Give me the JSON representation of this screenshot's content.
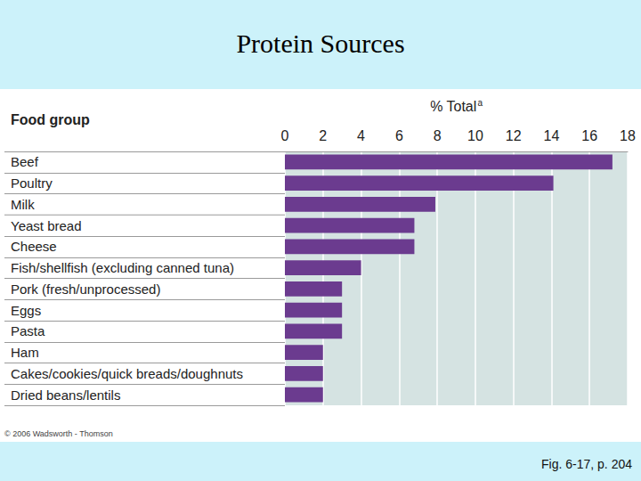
{
  "chart_data": {
    "type": "bar",
    "orientation": "horizontal",
    "title": "Protein Sources",
    "y_label": "Food group",
    "x_label": "% Total",
    "x_label_marker": "a",
    "categories": [
      "Beef",
      "Poultry",
      "Milk",
      "Yeast bread",
      "Cheese",
      "Fish/shellfish (excluding canned tuna)",
      "Pork (fresh/unprocessed)",
      "Eggs",
      "Pasta",
      "Ham",
      "Cakes/cookies/quick breads/doughnuts",
      "Dried beans/lentils"
    ],
    "values": [
      17.2,
      14.1,
      7.9,
      6.8,
      6.8,
      4,
      3,
      3,
      3,
      2,
      2,
      2
    ],
    "color": "#6b3b8f",
    "xlim": [
      0,
      18
    ],
    "xticks": [
      0,
      2,
      4,
      6,
      8,
      10,
      12,
      14,
      16,
      18
    ],
    "grid": true,
    "annotations": [
      "© 2006 Wadsworth - Thomson",
      "Fig. 6-17, p. 204"
    ]
  }
}
